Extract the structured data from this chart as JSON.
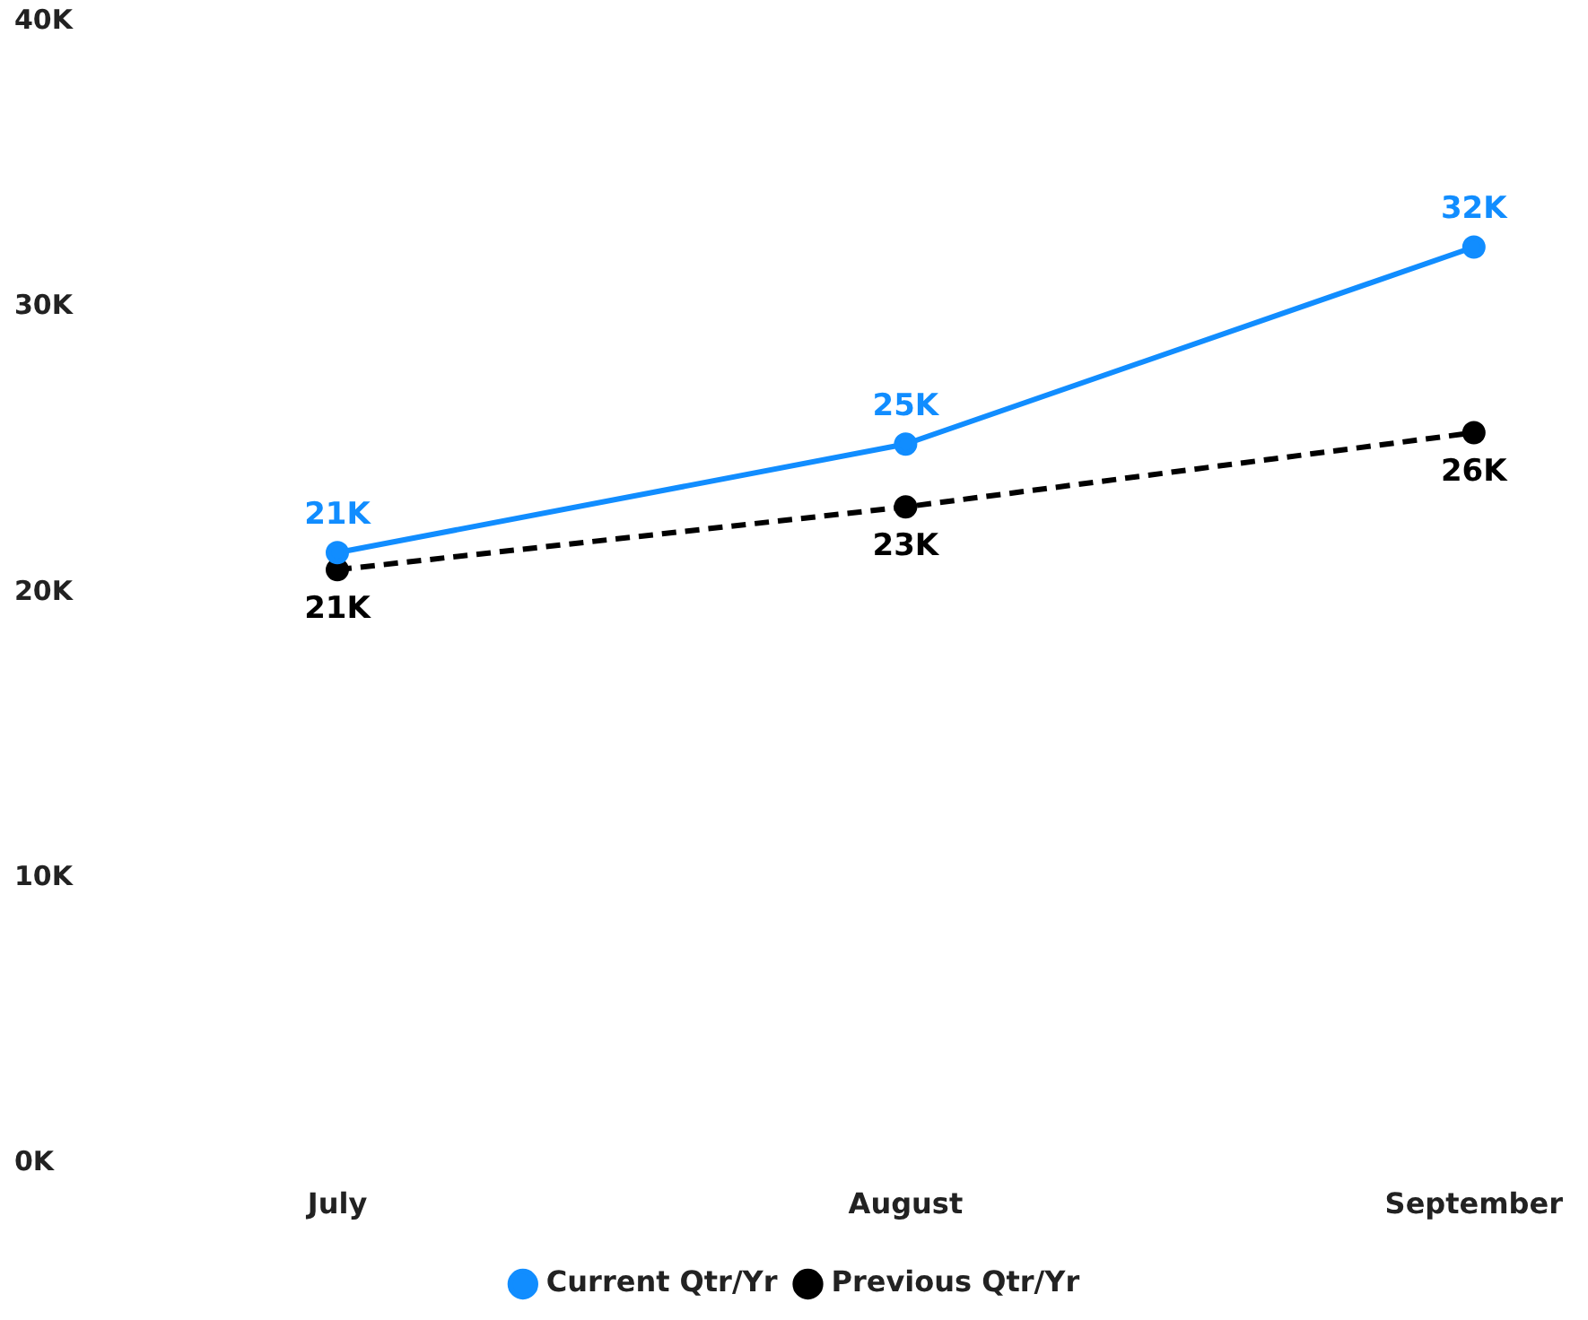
{
  "chart_data": {
    "type": "line",
    "categories": [
      "July",
      "August",
      "September"
    ],
    "series": [
      {
        "name": "Current Qtr/Yr",
        "color": "#118dff",
        "values": [
          21.4,
          25.2,
          32.1
        ],
        "value_labels": [
          "21K",
          "25K",
          "32K"
        ],
        "line_style": "solid"
      },
      {
        "name": "Previous Qtr/Yr",
        "color": "#000000",
        "values": [
          20.8,
          23.0,
          25.6
        ],
        "value_labels": [
          "21K",
          "23K",
          "26K"
        ],
        "line_style": "dashed"
      }
    ],
    "ylim": [
      0,
      40
    ],
    "yticks": [
      {
        "value": 0,
        "label": "0K"
      },
      {
        "value": 10,
        "label": "10K"
      },
      {
        "value": 20,
        "label": "20K"
      },
      {
        "value": 30,
        "label": "30K"
      },
      {
        "value": 40,
        "label": "40K"
      }
    ],
    "grid": false,
    "legend": "bottom",
    "marker": "circle"
  }
}
